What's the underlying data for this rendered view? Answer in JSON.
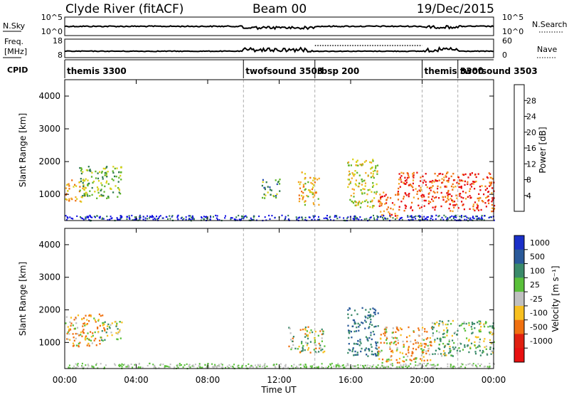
{
  "header": {
    "radar": "Clyde River (fitACF)",
    "beam": "Beam 00",
    "date": "19/Dec/2015"
  },
  "strip_labels": {
    "nsky": "N.Sky",
    "nsky_ticks": [
      "10^5",
      "10^0"
    ],
    "nsearch": "N.Search",
    "nsearch_ticks": [
      "10^5",
      "10^0"
    ],
    "freq_top": "Freq.",
    "freq_unit": "[MHz]",
    "freq_ticks": [
      "18",
      "8"
    ],
    "nave": "Nave",
    "nave_ticks": [
      "60",
      "0"
    ],
    "cpid": "CPID"
  },
  "cpid_segments": [
    {
      "label": "themis 3300",
      "start_hour": 0
    },
    {
      "label": "twofsound 3503",
      "start_hour": 10
    },
    {
      "label": "rbsp 200",
      "start_hour": 14
    },
    {
      "label": "themis 3300",
      "start_hour": 20
    },
    {
      "label": "twofsound 3503",
      "start_hour": 22
    }
  ],
  "axes": {
    "ylabel": "Slant Range [km]",
    "y_ticks": [
      "1000",
      "2000",
      "3000",
      "4000"
    ],
    "y_tick_values": [
      1000,
      2000,
      3000,
      4000
    ],
    "ylim": [
      200,
      4500
    ],
    "xlabel": "Time UT",
    "x_ticks": [
      "00:00",
      "04:00",
      "08:00",
      "12:00",
      "16:00",
      "20:00",
      "00:00"
    ],
    "x_tick_hours": [
      0,
      4,
      8,
      12,
      16,
      20,
      24
    ],
    "xlim_hours": [
      0,
      24
    ]
  },
  "power_bar": {
    "label": "Power [dB]",
    "ticks": [
      "4",
      "8",
      "12",
      "16",
      "20",
      "24",
      "28"
    ],
    "colors": [
      "#1010e0",
      "#2a4fb0",
      "#2f7a4e",
      "#5fb52a",
      "#d9d21a",
      "#f4a623",
      "#f07010",
      "#e81010"
    ]
  },
  "velocity_bar": {
    "label": "Velocity [m s⁻¹]",
    "ticks": [
      "1000",
      "500",
      "100",
      "25",
      "-25",
      "-100",
      "-500",
      "-1000"
    ],
    "colors": [
      "#1a2fc8",
      "#2a5a9a",
      "#3a8a6a",
      "#5ac03a",
      "#c0c0c0",
      "#f8c020",
      "#f07010",
      "#e02010",
      "#e81010"
    ]
  },
  "chart_data": [
    {
      "type": "heatmap",
      "title": "Power",
      "xlabel": "",
      "ylabel": "Slant Range [km]",
      "ylim": [
        200,
        4500
      ],
      "xlim_hours": [
        0,
        24
      ],
      "series": [
        {
          "name": "Power",
          "regions": [
            {
              "t0": 0.0,
              "t1": 1.2,
              "r0": 800,
              "r1": 1500,
              "value_db": 22
            },
            {
              "t0": 0.8,
              "t1": 3.2,
              "r0": 900,
              "r1": 1900,
              "value_db": 14
            },
            {
              "t0": 11.0,
              "t1": 12.0,
              "r0": 900,
              "r1": 1500,
              "value_db": 12
            },
            {
              "t0": 13.0,
              "t1": 14.2,
              "r0": 700,
              "r1": 1700,
              "value_db": 20
            },
            {
              "t0": 15.8,
              "t1": 17.5,
              "r0": 600,
              "r1": 2100,
              "value_db": 18
            },
            {
              "t0": 17.5,
              "t1": 18.6,
              "r0": 300,
              "r1": 1100,
              "value_db": 26
            },
            {
              "t0": 18.6,
              "t1": 24.0,
              "r0": 500,
              "r1": 1700,
              "value_db": 28
            }
          ]
        }
      ]
    },
    {
      "type": "heatmap",
      "title": "Velocity",
      "xlabel": "Time UT",
      "ylabel": "Slant Range [km]",
      "ylim": [
        200,
        4500
      ],
      "xlim_hours": [
        0,
        24
      ],
      "series": [
        {
          "name": "Velocity",
          "regions": [
            {
              "t0": 0.0,
              "t1": 2.2,
              "r0": 900,
              "r1": 1900,
              "value_ms": -100
            },
            {
              "t0": 2.0,
              "t1": 3.2,
              "r0": 1100,
              "r1": 1700,
              "value_ms": 100
            },
            {
              "t0": 12.5,
              "t1": 14.5,
              "r0": 700,
              "r1": 1500,
              "value_ms": 0
            },
            {
              "t0": 15.8,
              "t1": 17.5,
              "r0": 600,
              "r1": 2100,
              "value_ms": 500
            },
            {
              "t0": 17.5,
              "t1": 20.5,
              "r0": 400,
              "r1": 1500,
              "value_ms": -100
            },
            {
              "t0": 20.5,
              "t1": 24.0,
              "r0": 600,
              "r1": 1700,
              "value_ms": 100
            }
          ]
        }
      ]
    }
  ]
}
